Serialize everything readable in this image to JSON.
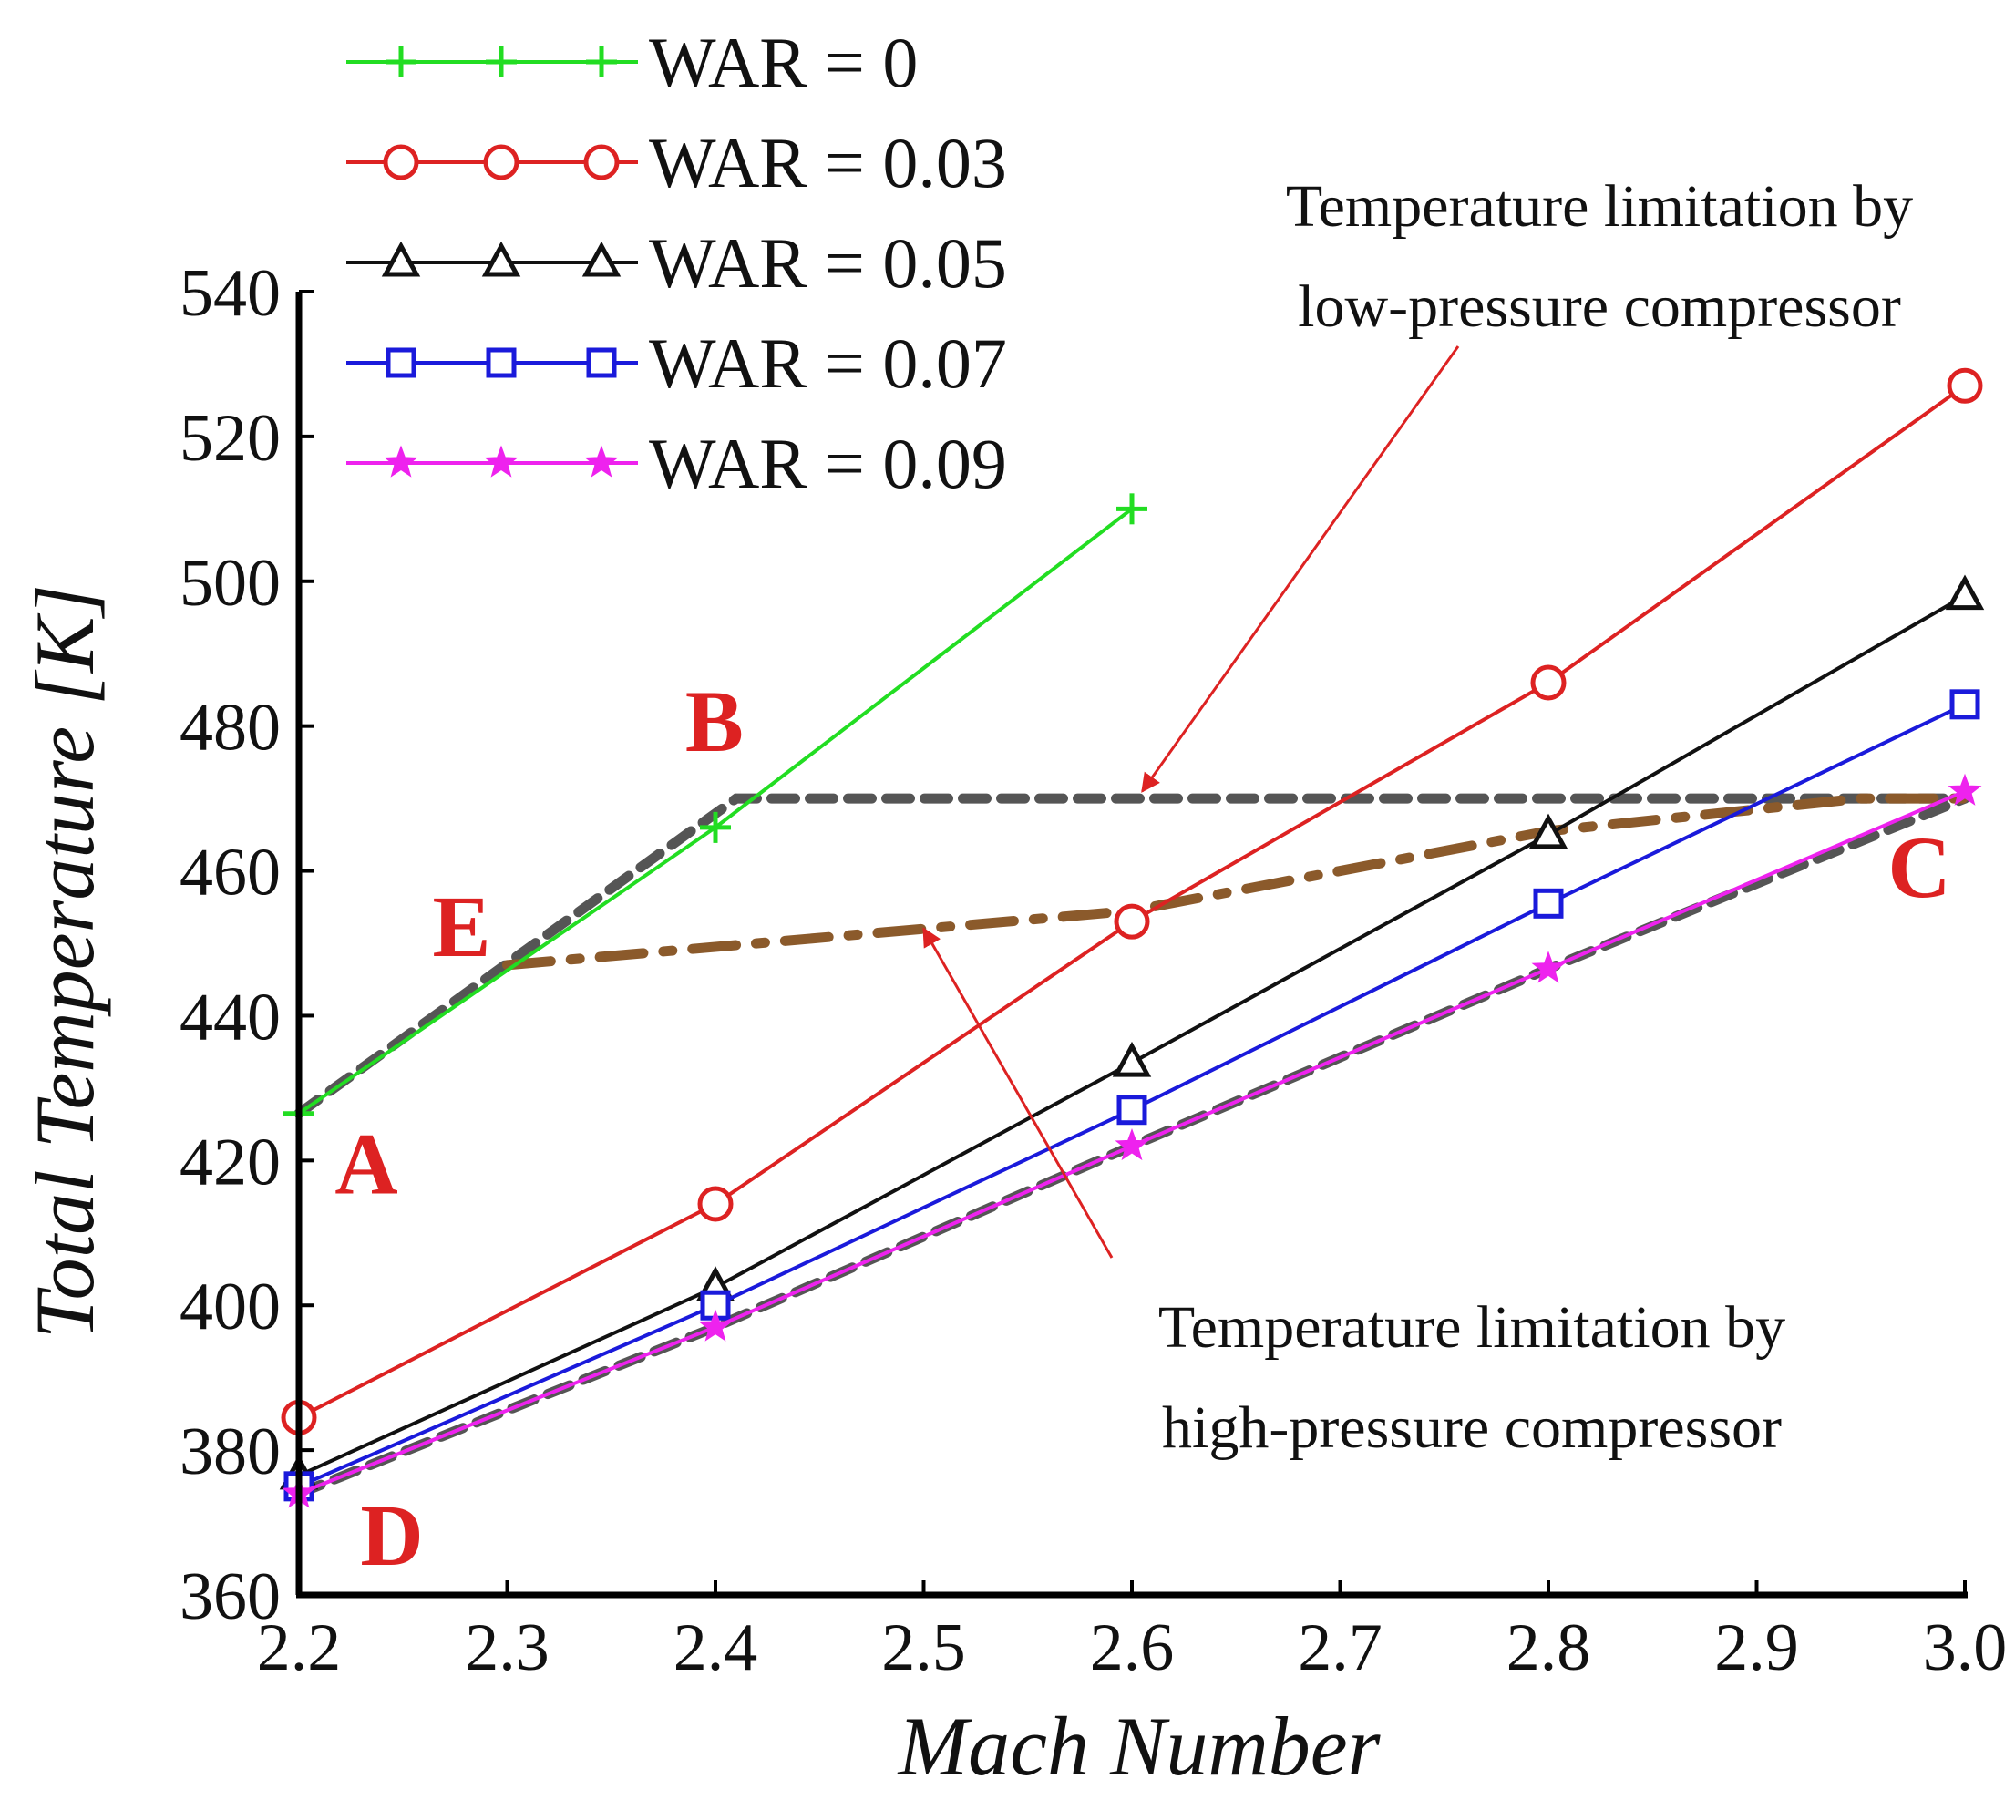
{
  "chart_data": {
    "type": "line",
    "title": "",
    "xlabel": "Mach Number",
    "ylabel": "Total Temperature [K]",
    "xlim": [
      2.2,
      3.0
    ],
    "ylim": [
      360,
      540
    ],
    "xticks": [
      "2.2",
      "2.3",
      "2.4",
      "2.5",
      "2.6",
      "2.7",
      "2.8",
      "2.9",
      "3.0"
    ],
    "yticks": [
      "360",
      "380",
      "400",
      "420",
      "440",
      "460",
      "480",
      "500",
      "520",
      "540"
    ],
    "grid": false,
    "legend_position": "top-left",
    "series": [
      {
        "name": "WAR = 0",
        "color": "#22dd22",
        "marker": "plus",
        "x": [
          2.2,
          2.4,
          2.6
        ],
        "y": [
          426.5,
          466,
          510
        ]
      },
      {
        "name": "WAR = 0.03",
        "color": "#dd2222",
        "marker": "circle",
        "x": [
          2.2,
          2.4,
          2.6,
          2.8,
          3.0
        ],
        "y": [
          384.5,
          414,
          453,
          486,
          527
        ]
      },
      {
        "name": "WAR = 0.05",
        "color": "#111111",
        "marker": "triangle",
        "x": [
          2.2,
          2.4,
          2.6,
          2.8,
          3.0
        ],
        "y": [
          376.5,
          402.5,
          433.5,
          465,
          498
        ]
      },
      {
        "name": "WAR = 0.07",
        "color": "#1a1adb",
        "marker": "square",
        "x": [
          2.2,
          2.4,
          2.6,
          2.8,
          3.0
        ],
        "y": [
          375,
          400,
          427,
          455.5,
          483
        ]
      },
      {
        "name": "WAR = 0.09",
        "color": "#ee22ee",
        "marker": "star",
        "x": [
          2.2,
          2.4,
          2.6,
          2.8,
          3.0
        ],
        "y": [
          374,
          397,
          422,
          446.5,
          471
        ]
      }
    ],
    "limit_lines": [
      {
        "name": "low-pressure compressor limit",
        "color": "#555555",
        "style": "dashed",
        "x": [
          2.2,
          2.41,
          3.0
        ],
        "y": [
          426.5,
          470,
          470
        ]
      },
      {
        "name": "high-pressure compressor limit",
        "color": "#555555",
        "style": "dashed",
        "x": [
          2.2,
          2.4,
          2.6,
          2.8,
          3.0
        ],
        "y": [
          374,
          397,
          422,
          446.5,
          470
        ]
      },
      {
        "name": "combined limit",
        "color": "#8b5a2b",
        "style": "dash-dot",
        "x": [
          2.3,
          2.6,
          2.8,
          2.95,
          3.0
        ],
        "y": [
          447,
          454.5,
          465.5,
          470,
          470
        ]
      }
    ],
    "point_labels": [
      {
        "text": "A",
        "x": 2.2,
        "y": 426.5,
        "color": "#dd2222"
      },
      {
        "text": "B",
        "x": 2.41,
        "y": 470,
        "color": "#dd2222"
      },
      {
        "text": "C",
        "x": 3.0,
        "y": 470,
        "color": "#dd2222"
      },
      {
        "text": "D",
        "x": 2.2,
        "y": 374,
        "color": "#dd2222"
      },
      {
        "text": "E",
        "x": 2.3,
        "y": 447,
        "color": "#dd2222"
      }
    ],
    "annotations": [
      {
        "lines": [
          "Temperature limitation by",
          "low-pressure compressor"
        ],
        "target": [
          2.605,
          471
        ],
        "arrow_color": "#dd2222"
      },
      {
        "lines": [
          "Temperature limitation by",
          "high-pressure compressor"
        ],
        "target": [
          2.5,
          452
        ],
        "arrow_color": "#dd2222"
      }
    ]
  }
}
